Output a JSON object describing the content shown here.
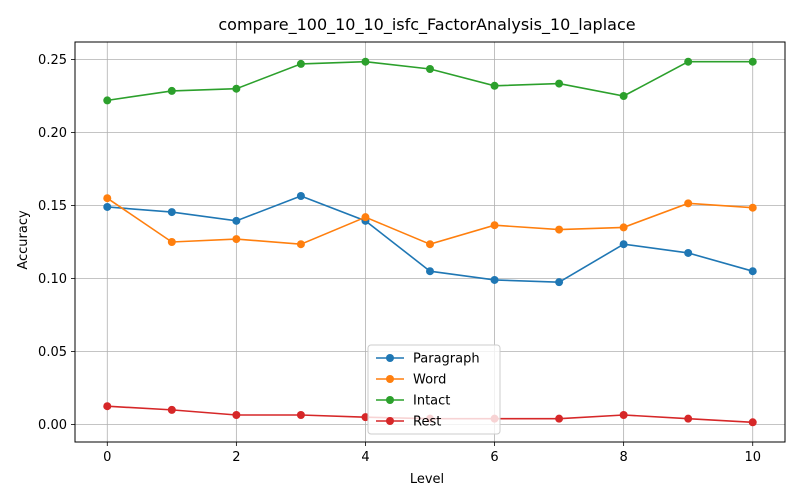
{
  "chart_data": {
    "type": "line",
    "title": "compare_100_10_10_isfc_FactorAnalysis_10_laplace",
    "xlabel": "Level",
    "ylabel": "Accuracy",
    "x": [
      0,
      1,
      2,
      3,
      4,
      5,
      6,
      7,
      8,
      9,
      10
    ],
    "xlim": [
      -0.5,
      10.5
    ],
    "ylim": [
      -0.012,
      0.262
    ],
    "x_ticks": [
      0,
      2,
      4,
      6,
      8,
      10
    ],
    "x_tick_labels": [
      "0",
      "2",
      "4",
      "6",
      "8",
      "10"
    ],
    "y_ticks": [
      0,
      0.05,
      0.1,
      0.15,
      0.2,
      0.25
    ],
    "y_tick_labels": [
      "0.00",
      "0.05",
      "0.10",
      "0.15",
      "0.20",
      "0.25"
    ],
    "grid": true,
    "legend_position": "bottom-center",
    "series": [
      {
        "name": "Paragraph",
        "color": "#1f77b4",
        "values": [
          0.149,
          0.1455,
          0.1395,
          0.1565,
          0.1395,
          0.105,
          0.099,
          0.0975,
          0.1235,
          0.1175,
          0.105
        ]
      },
      {
        "name": "Word",
        "color": "#ff7f0e",
        "values": [
          0.155,
          0.125,
          0.127,
          0.1235,
          0.142,
          0.1235,
          0.1365,
          0.1335,
          0.135,
          0.1515,
          0.1485
        ]
      },
      {
        "name": "Intact",
        "color": "#2ca02c",
        "values": [
          0.222,
          0.2285,
          0.23,
          0.247,
          0.2485,
          0.2435,
          0.232,
          0.2335,
          0.225,
          0.2485,
          0.2485
        ]
      },
      {
        "name": "Rest",
        "color": "#d62728",
        "values": [
          0.0125,
          0.01,
          0.0065,
          0.0065,
          0.005,
          0.004,
          0.004,
          0.004,
          0.0065,
          0.004,
          0.0015
        ]
      }
    ]
  }
}
